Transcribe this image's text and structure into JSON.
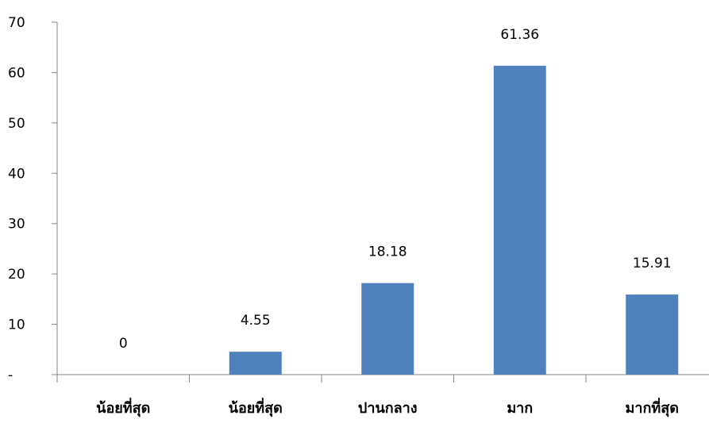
{
  "chart_data": {
    "type": "bar",
    "title": "",
    "xlabel": "",
    "ylabel": "",
    "ylim": [
      0,
      70
    ],
    "y_ticks": [
      {
        "value": 0,
        "label": "-"
      },
      {
        "value": 10,
        "label": "10"
      },
      {
        "value": 20,
        "label": "20"
      },
      {
        "value": 30,
        "label": "30"
      },
      {
        "value": 40,
        "label": "40"
      },
      {
        "value": 50,
        "label": "50"
      },
      {
        "value": 60,
        "label": "60"
      },
      {
        "value": 70,
        "label": "70"
      }
    ],
    "categories": [
      "น้อยที่สุด",
      "น้อยที่สุด",
      "ปานกลาง",
      "มาก",
      "มากที่สุด"
    ],
    "values": [
      0,
      4.55,
      18.18,
      61.36,
      15.91
    ],
    "data_labels": [
      "0",
      "4.55",
      "18.18",
      "61.36",
      "15.91"
    ],
    "bar_color": "#4F81BD",
    "grid": false,
    "legend": "none"
  }
}
